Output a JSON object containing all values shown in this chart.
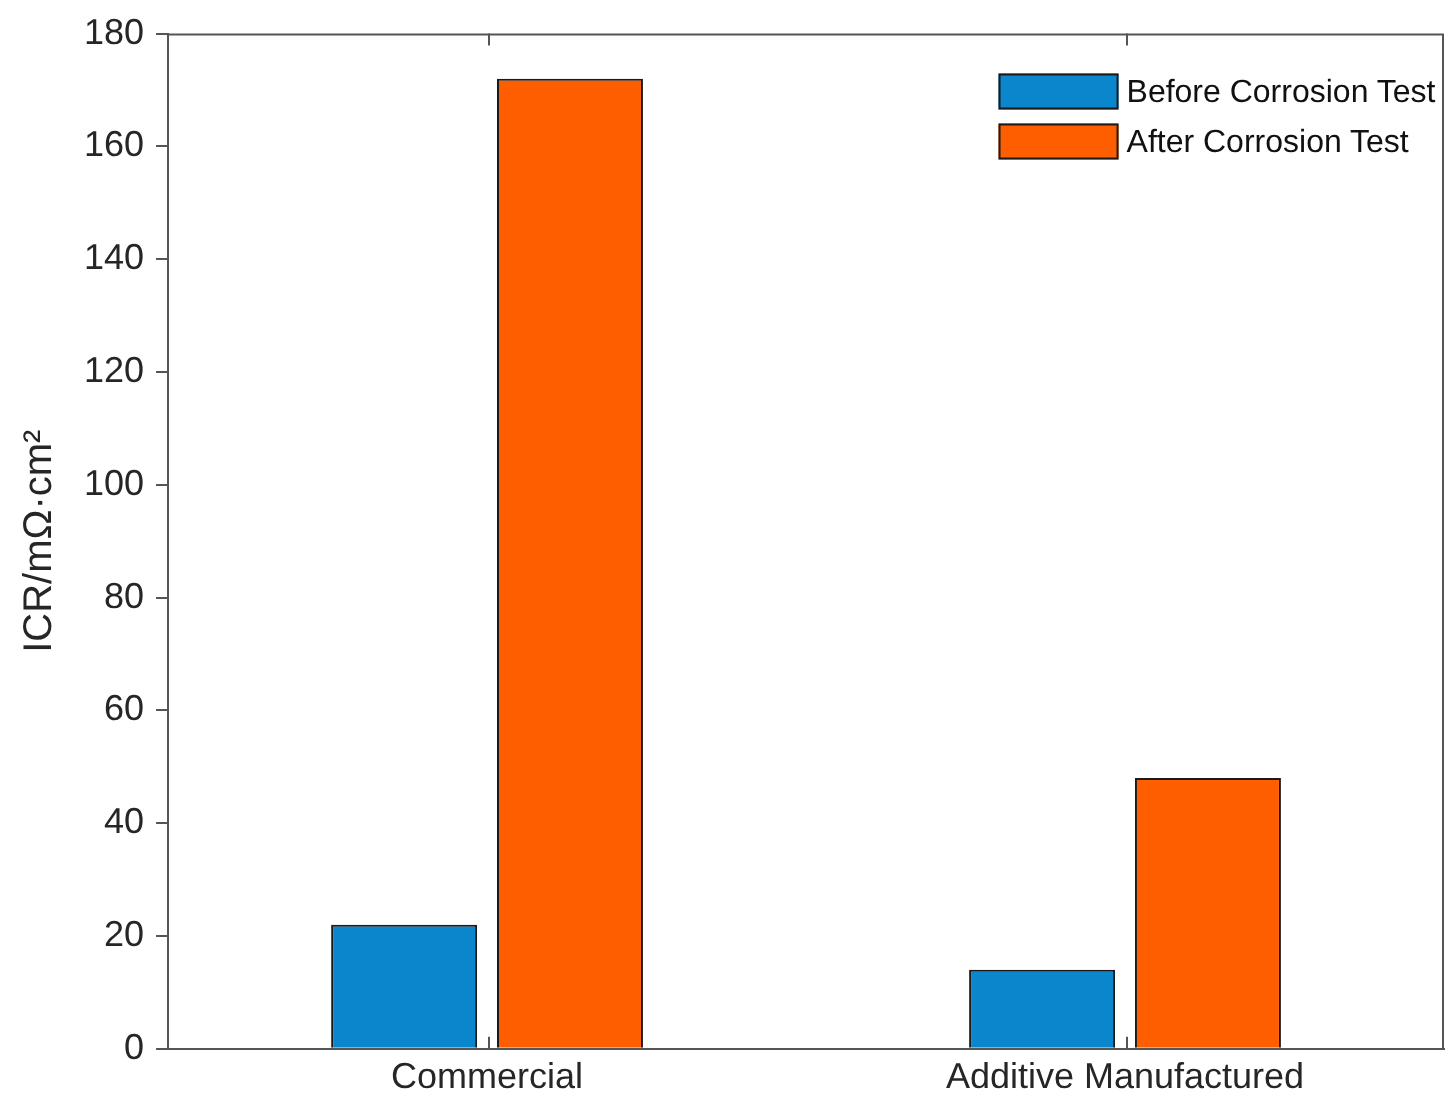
{
  "chart_data": {
    "type": "bar",
    "ylabel": "ICR/mΩ·cm²",
    "categories": [
      "Commercial",
      "Additive Manufactured"
    ],
    "series": [
      {
        "name": "Before Corrosion Test",
        "color": "#0a86cc",
        "values": [
          22,
          14
        ]
      },
      {
        "name": "After Corrosion Test",
        "color": "#ff5e00",
        "values": [
          172,
          48
        ]
      }
    ],
    "ylim": [
      0,
      180
    ],
    "yticks": [
      0,
      20,
      40,
      60,
      80,
      100,
      120,
      140,
      160,
      180
    ],
    "grid": false,
    "legend": "top right"
  }
}
